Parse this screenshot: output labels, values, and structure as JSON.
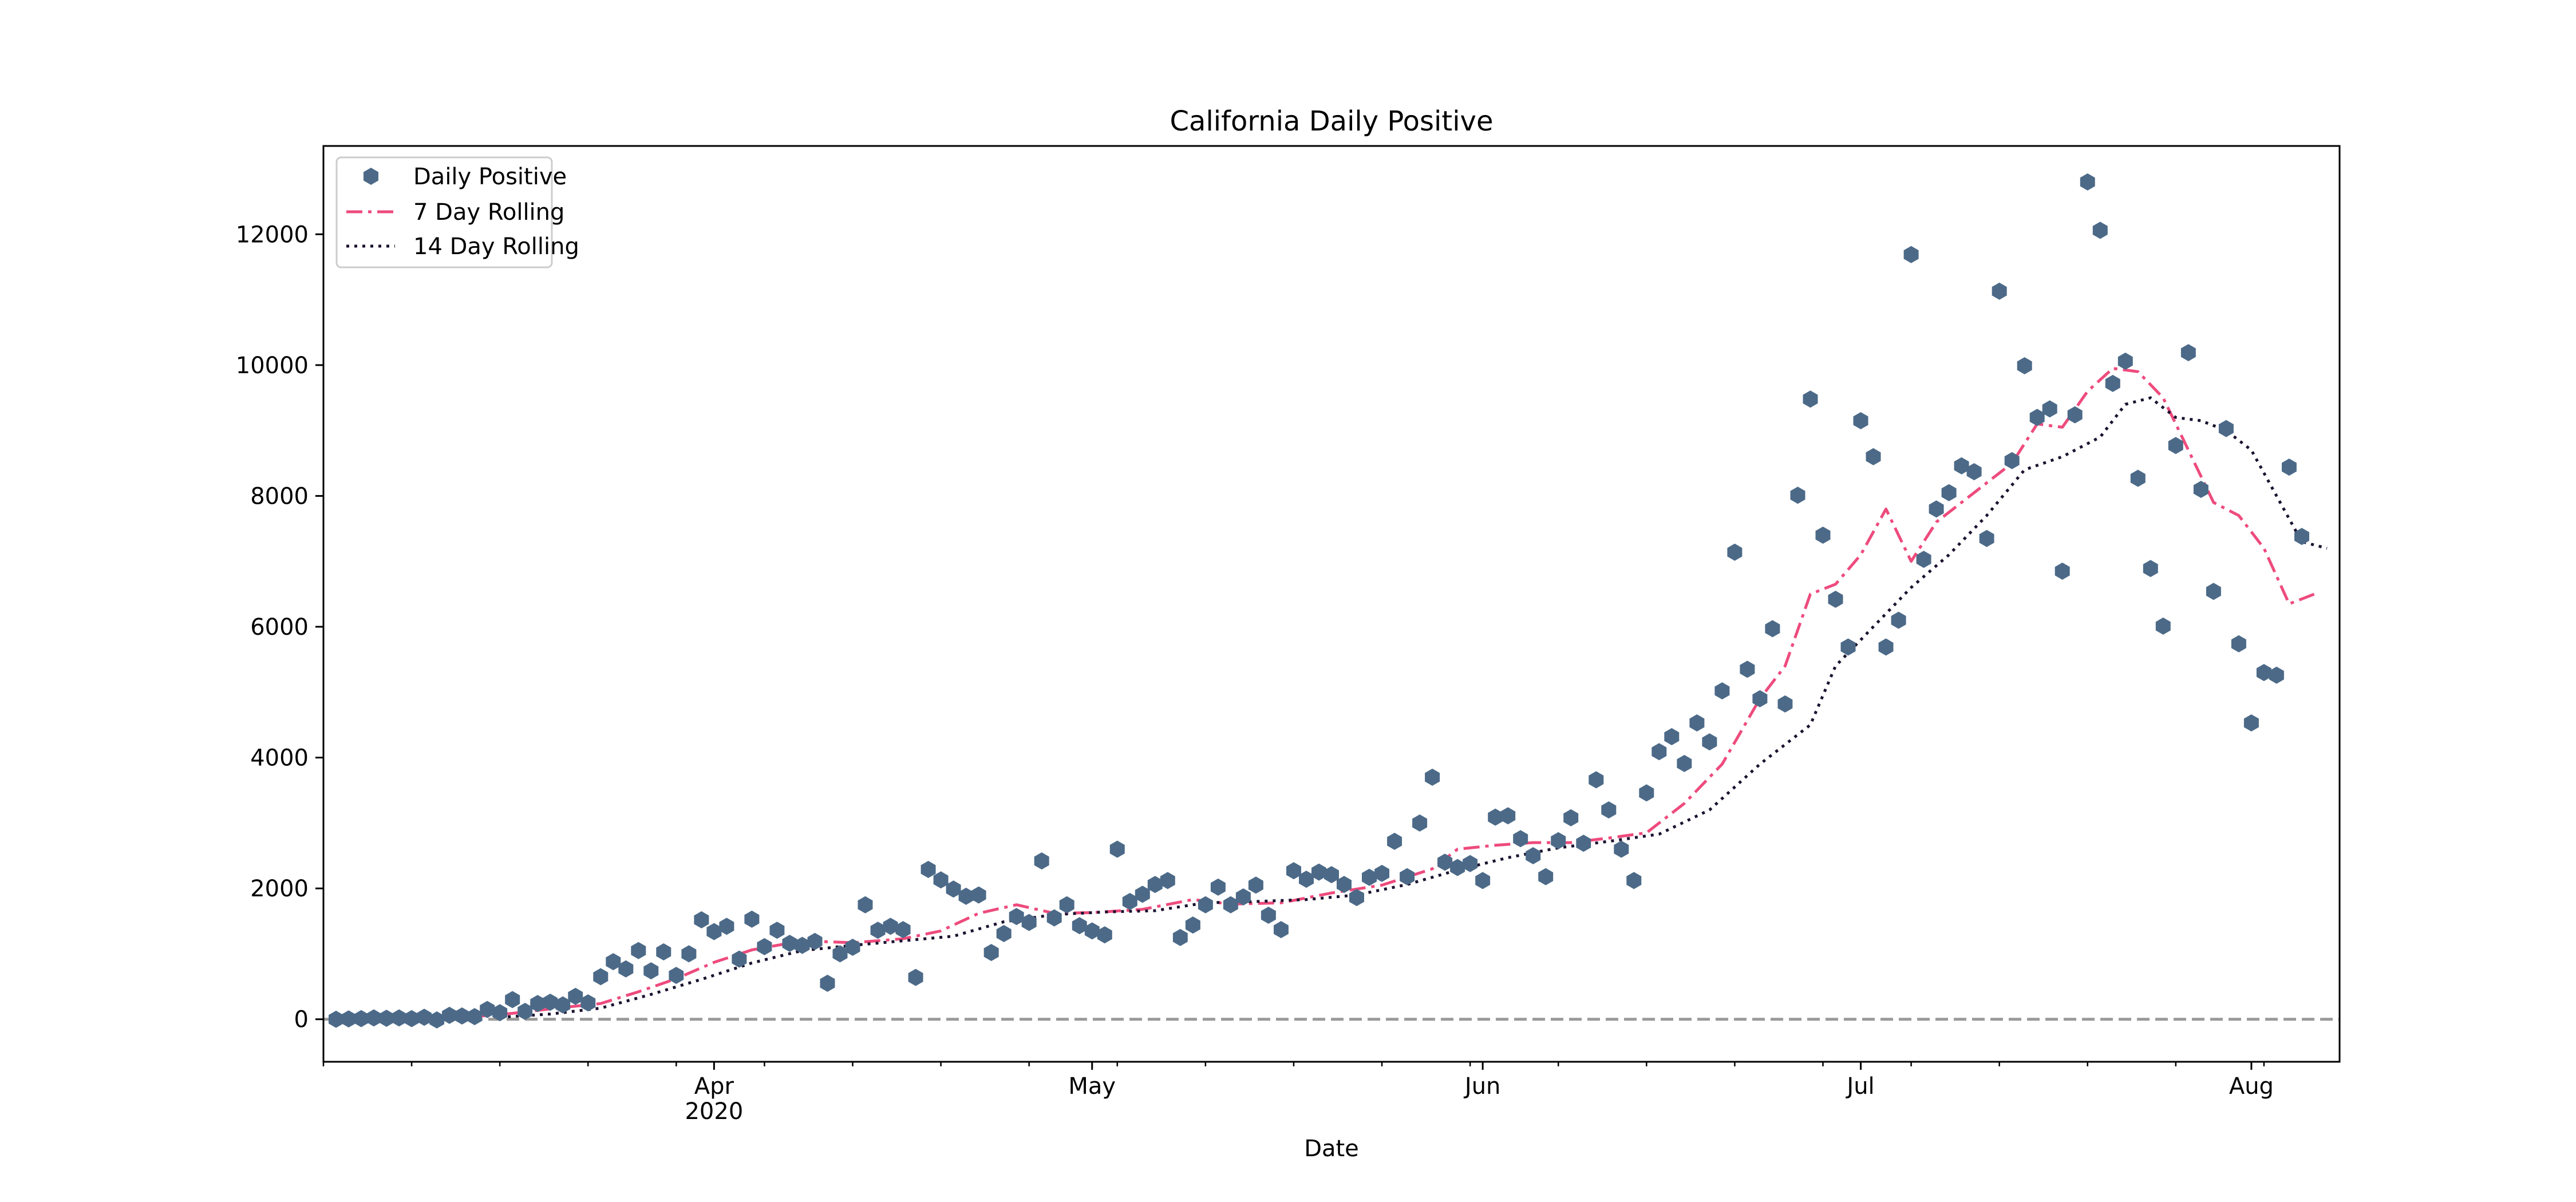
{
  "chart_data": {
    "type": "line",
    "title": "California Daily Positive",
    "xlabel": "Date",
    "ylabel": "",
    "x_axis": {
      "type": "date",
      "range": [
        "2020-03-01",
        "2020-08-08"
      ],
      "major_ticks": [
        {
          "date": "2020-04-01",
          "label": "Apr",
          "sublabel": "2020"
        },
        {
          "date": "2020-05-01",
          "label": "May",
          "sublabel": ""
        },
        {
          "date": "2020-06-01",
          "label": "Jun",
          "sublabel": ""
        },
        {
          "date": "2020-07-01",
          "label": "Jul",
          "sublabel": ""
        },
        {
          "date": "2020-08-01",
          "label": "Aug",
          "sublabel": ""
        }
      ]
    },
    "y_axis": {
      "range": [
        -650,
        13350
      ],
      "ticks": [
        0,
        2000,
        4000,
        6000,
        8000,
        10000,
        12000
      ]
    },
    "grid": false,
    "legend": {
      "position": "upper-left",
      "entries": [
        "Daily Positive",
        "7 Day Rolling",
        "14 Day Rolling"
      ]
    },
    "zero_line": {
      "y": 0,
      "color": "#999999",
      "style": "dashed"
    },
    "colors": {
      "daily": "#4c6a88",
      "rolling7": "#ee4b7d",
      "rolling14": "#1c1230",
      "zero": "#999999"
    },
    "series": [
      {
        "name": "Daily Positive",
        "style": "markers",
        "points": [
          [
            "2020-03-02",
            0
          ],
          [
            "2020-03-03",
            5
          ],
          [
            "2020-03-04",
            10
          ],
          [
            "2020-03-05",
            20
          ],
          [
            "2020-03-06",
            15
          ],
          [
            "2020-03-07",
            20
          ],
          [
            "2020-03-08",
            10
          ],
          [
            "2020-03-09",
            30
          ],
          [
            "2020-03-10",
            -10
          ],
          [
            "2020-03-11",
            60
          ],
          [
            "2020-03-12",
            50
          ],
          [
            "2020-03-13",
            40
          ],
          [
            "2020-03-14",
            150
          ],
          [
            "2020-03-15",
            100
          ],
          [
            "2020-03-16",
            300
          ],
          [
            "2020-03-17",
            120
          ],
          [
            "2020-03-18",
            240
          ],
          [
            "2020-03-19",
            260
          ],
          [
            "2020-03-20",
            220
          ],
          [
            "2020-03-21",
            350
          ],
          [
            "2020-03-22",
            250
          ],
          [
            "2020-03-23",
            650
          ],
          [
            "2020-03-24",
            880
          ],
          [
            "2020-03-25",
            770
          ],
          [
            "2020-03-26",
            1050
          ],
          [
            "2020-03-27",
            740
          ],
          [
            "2020-03-28",
            1030
          ],
          [
            "2020-03-29",
            670
          ],
          [
            "2020-03-30",
            1000
          ],
          [
            "2020-03-31",
            1520
          ],
          [
            "2020-04-01",
            1340
          ],
          [
            "2020-04-02",
            1420
          ],
          [
            "2020-04-03",
            920
          ],
          [
            "2020-04-04",
            1530
          ],
          [
            "2020-04-05",
            1110
          ],
          [
            "2020-04-06",
            1360
          ],
          [
            "2020-04-07",
            1160
          ],
          [
            "2020-04-08",
            1130
          ],
          [
            "2020-04-09",
            1190
          ],
          [
            "2020-04-10",
            550
          ],
          [
            "2020-04-11",
            1000
          ],
          [
            "2020-04-12",
            1100
          ],
          [
            "2020-04-13",
            1750
          ],
          [
            "2020-04-14",
            1360
          ],
          [
            "2020-04-15",
            1420
          ],
          [
            "2020-04-16",
            1370
          ],
          [
            "2020-04-17",
            640
          ],
          [
            "2020-04-18",
            2290
          ],
          [
            "2020-04-19",
            2130
          ],
          [
            "2020-04-20",
            1990
          ],
          [
            "2020-04-21",
            1880
          ],
          [
            "2020-04-22",
            1900
          ],
          [
            "2020-04-23",
            1020
          ],
          [
            "2020-04-24",
            1310
          ],
          [
            "2020-04-25",
            1570
          ],
          [
            "2020-04-26",
            1480
          ],
          [
            "2020-04-27",
            2420
          ],
          [
            "2020-04-28",
            1550
          ],
          [
            "2020-04-29",
            1750
          ],
          [
            "2020-04-30",
            1430
          ],
          [
            "2020-05-01",
            1350
          ],
          [
            "2020-05-02",
            1290
          ],
          [
            "2020-05-03",
            2600
          ],
          [
            "2020-05-04",
            1800
          ],
          [
            "2020-05-05",
            1910
          ],
          [
            "2020-05-06",
            2060
          ],
          [
            "2020-05-07",
            2120
          ],
          [
            "2020-05-08",
            1250
          ],
          [
            "2020-05-09",
            1440
          ],
          [
            "2020-05-10",
            1750
          ],
          [
            "2020-05-11",
            2020
          ],
          [
            "2020-05-12",
            1750
          ],
          [
            "2020-05-13",
            1870
          ],
          [
            "2020-05-14",
            2050
          ],
          [
            "2020-05-15",
            1590
          ],
          [
            "2020-05-16",
            1370
          ],
          [
            "2020-05-17",
            2270
          ],
          [
            "2020-05-18",
            2140
          ],
          [
            "2020-05-19",
            2250
          ],
          [
            "2020-05-20",
            2210
          ],
          [
            "2020-05-21",
            2060
          ],
          [
            "2020-05-22",
            1860
          ],
          [
            "2020-05-23",
            2170
          ],
          [
            "2020-05-24",
            2230
          ],
          [
            "2020-05-25",
            2720
          ],
          [
            "2020-05-26",
            2180
          ],
          [
            "2020-05-27",
            3000
          ],
          [
            "2020-05-28",
            3700
          ],
          [
            "2020-05-29",
            2400
          ],
          [
            "2020-05-30",
            2320
          ],
          [
            "2020-05-31",
            2380
          ],
          [
            "2020-06-01",
            2120
          ],
          [
            "2020-06-02",
            3090
          ],
          [
            "2020-06-03",
            3110
          ],
          [
            "2020-06-04",
            2760
          ],
          [
            "2020-06-05",
            2500
          ],
          [
            "2020-06-06",
            2180
          ],
          [
            "2020-06-07",
            2730
          ],
          [
            "2020-06-08",
            3080
          ],
          [
            "2020-06-09",
            2690
          ],
          [
            "2020-06-10",
            3660
          ],
          [
            "2020-06-11",
            3200
          ],
          [
            "2020-06-12",
            2600
          ],
          [
            "2020-06-13",
            2120
          ],
          [
            "2020-06-14",
            3460
          ],
          [
            "2020-06-15",
            4090
          ],
          [
            "2020-06-16",
            4320
          ],
          [
            "2020-06-17",
            3910
          ],
          [
            "2020-06-18",
            4530
          ],
          [
            "2020-06-19",
            4240
          ],
          [
            "2020-06-20",
            5020
          ],
          [
            "2020-06-21",
            7140
          ],
          [
            "2020-06-22",
            5350
          ],
          [
            "2020-06-23",
            4900
          ],
          [
            "2020-06-24",
            5970
          ],
          [
            "2020-06-25",
            4820
          ],
          [
            "2020-06-26",
            8010
          ],
          [
            "2020-06-27",
            9480
          ],
          [
            "2020-06-28",
            7400
          ],
          [
            "2020-06-29",
            6420
          ],
          [
            "2020-06-30",
            5690
          ],
          [
            "2020-07-01",
            9150
          ],
          [
            "2020-07-02",
            8600
          ],
          [
            "2020-07-03",
            5690
          ],
          [
            "2020-07-04",
            6100
          ],
          [
            "2020-07-05",
            11690
          ],
          [
            "2020-07-06",
            7030
          ],
          [
            "2020-07-07",
            7800
          ],
          [
            "2020-07-08",
            8050
          ],
          [
            "2020-07-09",
            8460
          ],
          [
            "2020-07-10",
            8370
          ],
          [
            "2020-07-11",
            7350
          ],
          [
            "2020-07-12",
            11130
          ],
          [
            "2020-07-13",
            8540
          ],
          [
            "2020-07-14",
            9990
          ],
          [
            "2020-07-15",
            9200
          ],
          [
            "2020-07-16",
            9330
          ],
          [
            "2020-07-17",
            6850
          ],
          [
            "2020-07-18",
            9240
          ],
          [
            "2020-07-19",
            12800
          ],
          [
            "2020-07-20",
            12060
          ],
          [
            "2020-07-21",
            9720
          ],
          [
            "2020-07-22",
            10060
          ],
          [
            "2020-07-23",
            8270
          ],
          [
            "2020-07-24",
            6890
          ],
          [
            "2020-07-25",
            6010
          ],
          [
            "2020-07-26",
            8770
          ],
          [
            "2020-07-27",
            10190
          ],
          [
            "2020-07-28",
            8100
          ],
          [
            "2020-07-29",
            6540
          ],
          [
            "2020-07-30",
            9030
          ],
          [
            "2020-07-31",
            5740
          ],
          [
            "2020-08-01",
            4530
          ],
          [
            "2020-08-02",
            5300
          ],
          [
            "2020-08-03",
            5260
          ],
          [
            "2020-08-04",
            8440
          ],
          [
            "2020-08-05",
            7380
          ]
        ]
      },
      {
        "name": "7 Day Rolling",
        "style": "dash-dot",
        "points": [
          [
            "2020-03-08",
            12
          ],
          [
            "2020-03-12",
            25
          ],
          [
            "2020-03-16",
            90
          ],
          [
            "2020-03-20",
            180
          ],
          [
            "2020-03-23",
            240
          ],
          [
            "2020-03-26",
            420
          ],
          [
            "2020-03-29",
            620
          ],
          [
            "2020-04-01",
            870
          ],
          [
            "2020-04-04",
            1060
          ],
          [
            "2020-04-08",
            1200
          ],
          [
            "2020-04-12",
            1170
          ],
          [
            "2020-04-16",
            1230
          ],
          [
            "2020-04-19",
            1350
          ],
          [
            "2020-04-22",
            1620
          ],
          [
            "2020-04-25",
            1750
          ],
          [
            "2020-04-28",
            1620
          ],
          [
            "2020-05-01",
            1630
          ],
          [
            "2020-05-05",
            1680
          ],
          [
            "2020-05-09",
            1830
          ],
          [
            "2020-05-12",
            1760
          ],
          [
            "2020-05-16",
            1780
          ],
          [
            "2020-05-20",
            1930
          ],
          [
            "2020-05-24",
            2050
          ],
          [
            "2020-05-28",
            2300
          ],
          [
            "2020-05-30",
            2600
          ],
          [
            "2020-06-02",
            2660
          ],
          [
            "2020-06-05",
            2700
          ],
          [
            "2020-06-08",
            2700
          ],
          [
            "2020-06-11",
            2770
          ],
          [
            "2020-06-14",
            2850
          ],
          [
            "2020-06-17",
            3300
          ],
          [
            "2020-06-20",
            3900
          ],
          [
            "2020-06-23",
            4900
          ],
          [
            "2020-06-25",
            5400
          ],
          [
            "2020-06-27",
            6500
          ],
          [
            "2020-06-29",
            6650
          ],
          [
            "2020-07-01",
            7100
          ],
          [
            "2020-07-03",
            7800
          ],
          [
            "2020-07-05",
            7000
          ],
          [
            "2020-07-07",
            7600
          ],
          [
            "2020-07-09",
            7900
          ],
          [
            "2020-07-11",
            8200
          ],
          [
            "2020-07-13",
            8500
          ],
          [
            "2020-07-15",
            9100
          ],
          [
            "2020-07-17",
            9050
          ],
          [
            "2020-07-19",
            9600
          ],
          [
            "2020-07-21",
            9950
          ],
          [
            "2020-07-23",
            9900
          ],
          [
            "2020-07-25",
            9500
          ],
          [
            "2020-07-27",
            8700
          ],
          [
            "2020-07-29",
            7900
          ],
          [
            "2020-07-31",
            7700
          ],
          [
            "2020-08-02",
            7200
          ],
          [
            "2020-08-04",
            6350
          ],
          [
            "2020-08-06",
            6500
          ]
        ]
      },
      {
        "name": "14 Day Rolling",
        "style": "dotted",
        "points": [
          [
            "2020-03-15",
            30
          ],
          [
            "2020-03-19",
            80
          ],
          [
            "2020-03-23",
            170
          ],
          [
            "2020-03-27",
            380
          ],
          [
            "2020-03-31",
            610
          ],
          [
            "2020-04-04",
            860
          ],
          [
            "2020-04-08",
            1050
          ],
          [
            "2020-04-12",
            1130
          ],
          [
            "2020-04-16",
            1200
          ],
          [
            "2020-04-20",
            1270
          ],
          [
            "2020-04-24",
            1490
          ],
          [
            "2020-04-28",
            1600
          ],
          [
            "2020-05-02",
            1640
          ],
          [
            "2020-05-06",
            1660
          ],
          [
            "2020-05-10",
            1780
          ],
          [
            "2020-05-14",
            1800
          ],
          [
            "2020-05-18",
            1830
          ],
          [
            "2020-05-22",
            1900
          ],
          [
            "2020-05-26",
            2060
          ],
          [
            "2020-05-30",
            2280
          ],
          [
            "2020-06-03",
            2470
          ],
          [
            "2020-06-07",
            2620
          ],
          [
            "2020-06-11",
            2720
          ],
          [
            "2020-06-15",
            2830
          ],
          [
            "2020-06-19",
            3200
          ],
          [
            "2020-06-23",
            3900
          ],
          [
            "2020-06-27",
            4500
          ],
          [
            "2020-06-29",
            5400
          ],
          [
            "2020-07-02",
            6000
          ],
          [
            "2020-07-05",
            6600
          ],
          [
            "2020-07-08",
            7100
          ],
          [
            "2020-07-11",
            7700
          ],
          [
            "2020-07-14",
            8400
          ],
          [
            "2020-07-17",
            8600
          ],
          [
            "2020-07-20",
            8900
          ],
          [
            "2020-07-22",
            9400
          ],
          [
            "2020-07-24",
            9500
          ],
          [
            "2020-07-26",
            9200
          ],
          [
            "2020-07-28",
            9150
          ],
          [
            "2020-07-30",
            9000
          ],
          [
            "2020-08-01",
            8700
          ],
          [
            "2020-08-03",
            8000
          ],
          [
            "2020-08-05",
            7300
          ],
          [
            "2020-08-07",
            7200
          ]
        ]
      }
    ]
  }
}
